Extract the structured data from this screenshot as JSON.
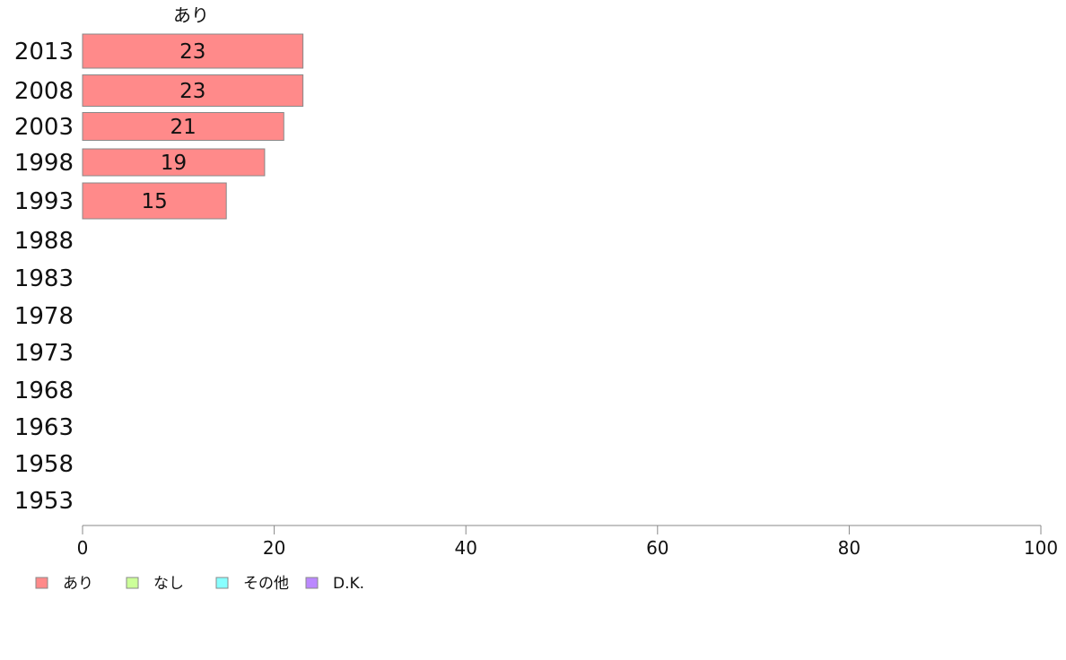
{
  "chart_data": {
    "type": "bar",
    "orientation": "horizontal",
    "categories": [
      "2013",
      "2008",
      "2003",
      "1998",
      "1993",
      "1988",
      "1983",
      "1978",
      "1973",
      "1968",
      "1963",
      "1958",
      "1953"
    ],
    "series": [
      {
        "name": "あり",
        "values": [
          23,
          23,
          21,
          19,
          15,
          null,
          null,
          null,
          null,
          null,
          null,
          null,
          null
        ],
        "color": "#ff8a8a"
      },
      {
        "name": "なし",
        "values": [
          null,
          null,
          null,
          null,
          null,
          null,
          null,
          null,
          null,
          null,
          null,
          null,
          null
        ],
        "color": "#ccff99"
      },
      {
        "name": "その他",
        "values": [
          null,
          null,
          null,
          null,
          null,
          null,
          null,
          null,
          null,
          null,
          null,
          null,
          null
        ],
        "color": "#88ffff"
      },
      {
        "name": "D.K.",
        "values": [
          null,
          null,
          null,
          null,
          null,
          null,
          null,
          null,
          null,
          null,
          null,
          null,
          null
        ],
        "color": "#bb88ff"
      }
    ],
    "bar_labels": [
      "23",
      "23",
      "21",
      "19",
      "15"
    ],
    "series_title": "あり",
    "xlim": [
      0,
      100
    ],
    "xticks": [
      "0",
      "20",
      "40",
      "60",
      "80",
      "100"
    ],
    "legend_position": "bottom-left",
    "grid": false
  }
}
